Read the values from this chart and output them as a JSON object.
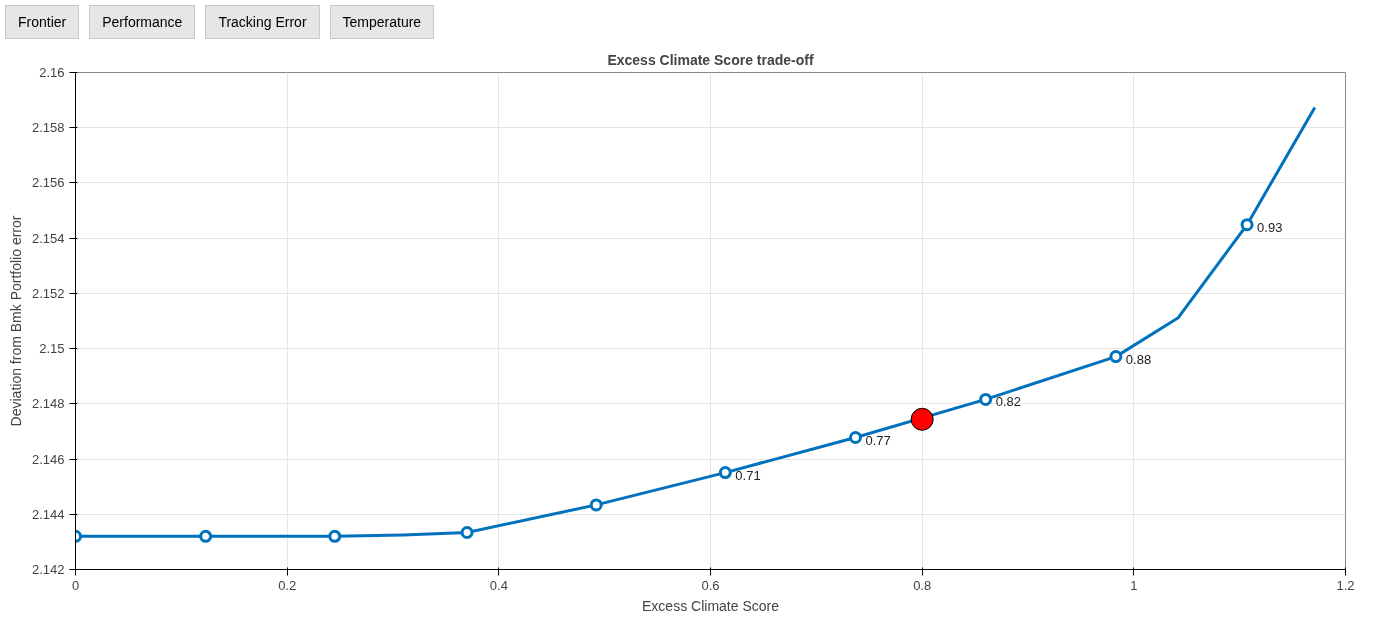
{
  "chart_data": {
    "type": "line",
    "title": "Excess Climate Score trade-off",
    "xlabel": "Excess Climate Score",
    "ylabel": "Deviation from Bmk Portfolio error",
    "annotations": [
      "Frontier",
      "Performance",
      "Tracking Error",
      "Temperature",
      {
        "text": "0.71",
        "x": 0.614,
        "y": 2.14551
      },
      {
        "text": "0.77",
        "x": 0.737,
        "y": 2.14678
      },
      {
        "text": "0.82",
        "x": 0.86,
        "y": 2.14816
      },
      {
        "text": "0.88",
        "x": 0.983,
        "y": 2.14971
      },
      {
        "text": "0.93",
        "x": 1.107,
        "y": 2.15449
      }
    ],
    "xlim": [
      0,
      1.2
    ],
    "xticks": [
      0,
      0.2,
      0.4,
      0.6,
      0.8,
      1,
      1.2
    ],
    "ylim": [
      2.142,
      2.16
    ],
    "yticks": [
      2.142,
      2.144,
      2.146,
      2.148,
      2.15,
      2.152,
      2.154,
      2.156,
      2.158,
      2.16
    ],
    "grid": true,
    "series": [
      {
        "color": "#0072bd",
        "marker": "none",
        "line_style": "solid",
        "x": [
          0,
          0.123,
          0.245,
          0.31,
          0.37,
          0.492,
          0.614,
          0.737,
          0.86,
          0.983,
          1.042,
          1.107,
          1.171
        ],
        "values": [
          2.1432,
          2.1432,
          2.1432,
          2.14325,
          2.14334,
          2.14434,
          2.14551,
          2.14678,
          2.14816,
          2.14971,
          2.15112,
          2.15449,
          2.15873
        ]
      },
      {
        "type": "scatter",
        "color": "#0072bd",
        "marker": "circle",
        "x": [
          0,
          0.123,
          0.245,
          0.37,
          0.492,
          0.614,
          0.737,
          0.86,
          0.983,
          1.107
        ],
        "values": [
          2.1432,
          2.1432,
          2.1432,
          2.14334,
          2.14434,
          2.14551,
          2.14678,
          2.14816,
          2.14971,
          2.15449
        ]
      },
      {
        "type": "scatter",
        "color": "#ff0000",
        "marker": "circle",
        "x": [
          0.8
        ],
        "values": [
          2.14744
        ]
      }
    ]
  }
}
